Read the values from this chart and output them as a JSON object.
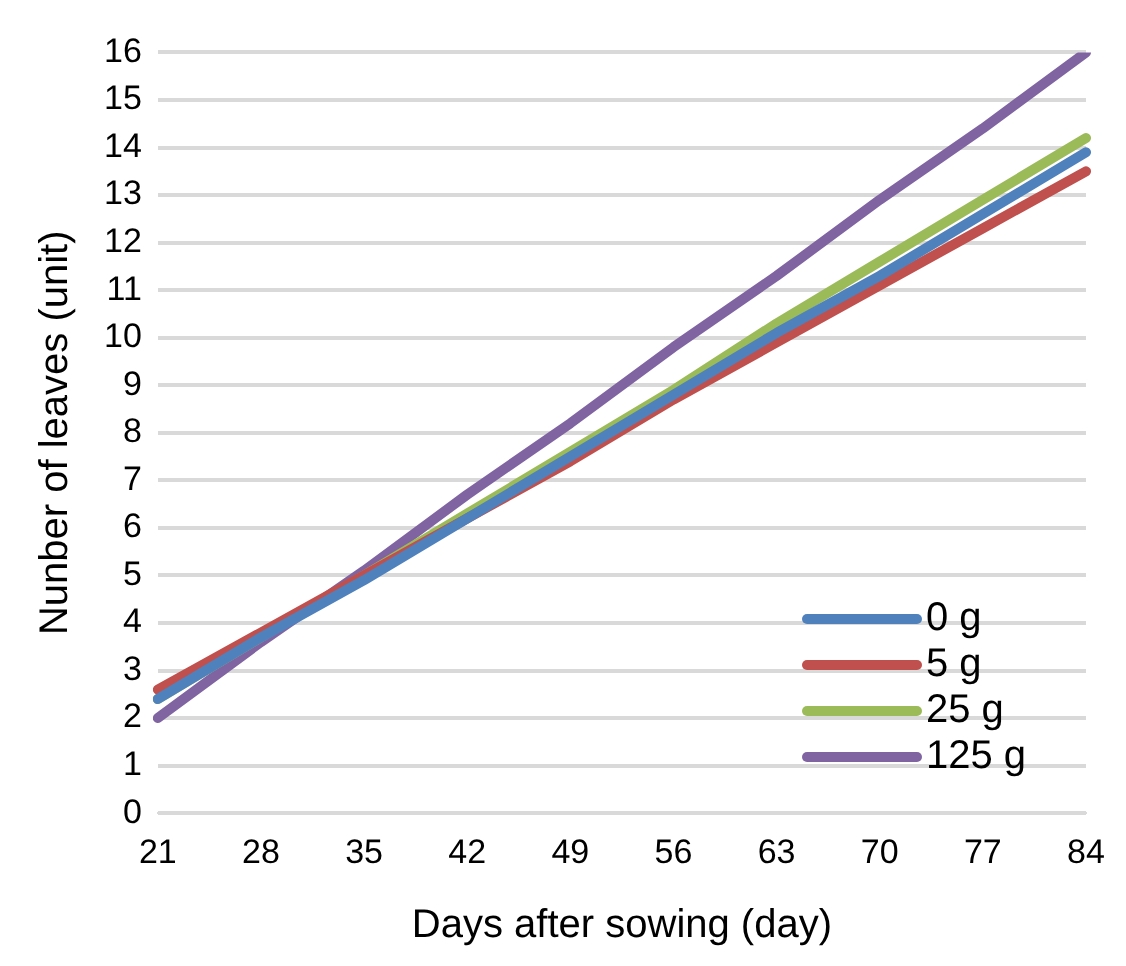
{
  "chart_data": {
    "type": "line",
    "xlabel": "Days after sowing (day)",
    "ylabel": "Nunber of leaves (unit)",
    "categories": [
      "21",
      "28",
      "35",
      "42",
      "49",
      "56",
      "63",
      "70",
      "77",
      "84"
    ],
    "series": [
      {
        "name": "0 g",
        "color": "#4f81bd",
        "values": [
          2.4,
          3.7,
          4.9,
          6.2,
          7.5,
          8.8,
          10.1,
          11.3,
          12.6,
          13.9
        ]
      },
      {
        "name": "5 g",
        "color": "#c0504d",
        "values": [
          2.6,
          3.8,
          5.0,
          6.2,
          7.4,
          8.7,
          9.9,
          11.1,
          12.3,
          13.5
        ]
      },
      {
        "name": "25 g",
        "color": "#9bbb59",
        "values": [
          2.4,
          3.7,
          5.0,
          6.3,
          7.6,
          8.9,
          10.3,
          11.6,
          12.9,
          14.2
        ]
      },
      {
        "name": "125 g",
        "color": "#8064a2",
        "values": [
          2.0,
          3.6,
          5.1,
          6.7,
          8.2,
          9.8,
          11.3,
          12.9,
          14.4,
          16.0
        ]
      }
    ],
    "ylim": [
      0,
      16
    ],
    "yticks": [
      0,
      1,
      2,
      3,
      4,
      5,
      6,
      7,
      8,
      9,
      10,
      11,
      12,
      13,
      14,
      15,
      16
    ],
    "grid": "y",
    "legend": "bottom right",
    "marker": "none",
    "line_style": "solid"
  }
}
